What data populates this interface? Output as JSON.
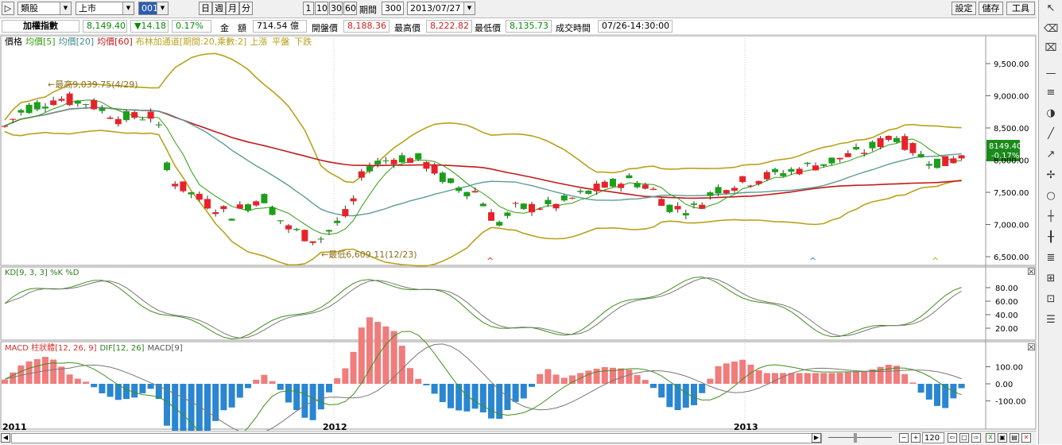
{
  "toolbar": {
    "category": "類股",
    "market": "上市",
    "code": "001",
    "period_buttons": [
      "日",
      "週",
      "月",
      "分"
    ],
    "count_buttons": [
      "1",
      "10",
      "30",
      "60"
    ],
    "period_count_label": "期間",
    "period_count_value": "300",
    "date_value": "2013/07/27",
    "settings_label": "設定",
    "save_label": "儲存",
    "tools_label": "工具"
  },
  "quote": {
    "name": "加權指數",
    "price": "8,149.40",
    "change": "▼14.18",
    "change_pct": "0.17%",
    "amount_label": "金　額",
    "amount_value": "714.54 億",
    "open_label": "開盤價",
    "open_value": "8,188.36",
    "high_label": "最高價",
    "high_value": "8,222.82",
    "low_label": "最低價",
    "low_value": "8,135.73",
    "time_label": "成交時間",
    "time_value": "07/26-14:30:00"
  },
  "price_panel": {
    "legend": {
      "price": "價格",
      "ma5": "均價[5]",
      "ma20": "均價[20]",
      "ma60": "均價[60]",
      "bb": "布林加通道[期間:20,乘數:2]",
      "up": "上漲",
      "flat": "平盤",
      "down": "下跌"
    },
    "last_price_tag": "8149.40",
    "last_change_tag": "-0.17%",
    "high_note": "←最高9,039.75(4/29)",
    "low_note": "←最低6,609.11(12/23)",
    "y_ticks": [
      "9,500.00",
      "9,000.00",
      "8,500.00",
      "8,000.00",
      "7,500.00",
      "7,000.00",
      "6,500.00"
    ]
  },
  "kd_panel": {
    "legend": "KD[9, 3, 3] %K %D",
    "y_ticks": [
      "80.00",
      "60.00",
      "40.00",
      "20.00"
    ]
  },
  "macd_panel": {
    "legend_hist": "MACD 柱狀體[12, 26, 9]",
    "legend_dif": "DIF[12, 26]",
    "legend_macd": "MACD[9]",
    "y_ticks": [
      "100.00",
      "0.00",
      "-100.00"
    ]
  },
  "x_labels": [
    "2011",
    "2012",
    "2013"
  ],
  "bottom": {
    "zoom_value": "120"
  },
  "colors": {
    "up": "#e8222a",
    "down": "#1aa01a",
    "ma5": "#2f9e0f",
    "ma20": "#5e9b94",
    "ma60": "#c41a1a",
    "bb": "#b8a21a",
    "hist_pos": "#f07c7c",
    "hist_neg": "#2a86d0"
  }
}
